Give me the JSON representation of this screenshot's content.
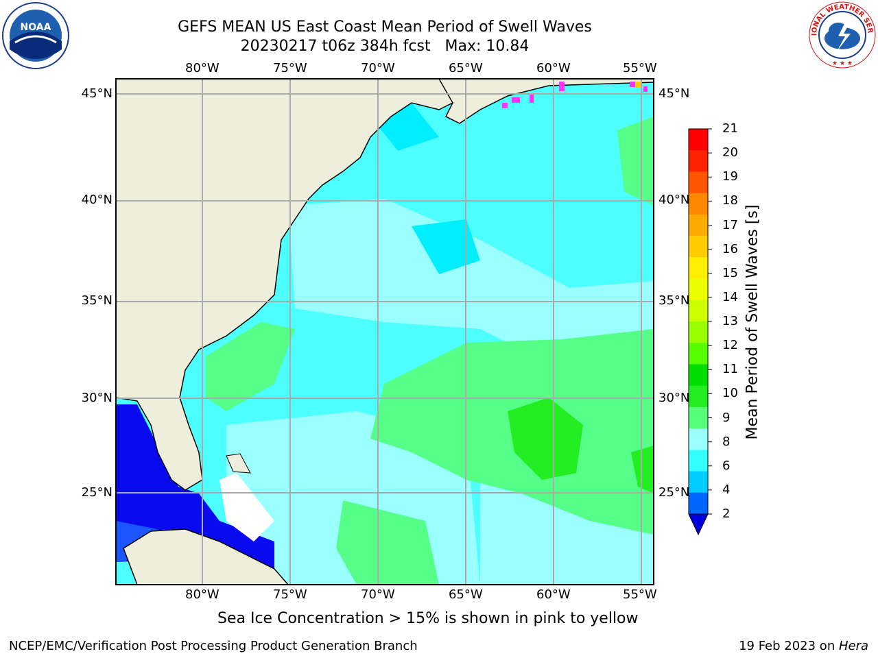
{
  "title": {
    "line1": "GEFS MEAN US East Coast Mean Period of Swell Waves",
    "line2": "20230217 t06z 384h fcst   Max: 10.84"
  },
  "logos": {
    "left": "NOAA",
    "right": "NATIONAL WEATHER SERVICE"
  },
  "map": {
    "lon_labels": [
      "80°W",
      "75°W",
      "70°W",
      "65°W",
      "60°W",
      "55°W"
    ],
    "lat_labels": [
      "45°N",
      "40°N",
      "35°N",
      "30°N",
      "25°N"
    ],
    "region": "US East Coast / Western North Atlantic",
    "colors": {
      "land": "#eeeedd",
      "ocean_2_4": "#0a0aee",
      "ocean_4_6": "#00ddff",
      "ocean_6_8": "#4dffff",
      "ocean_8_9": "#99ffff",
      "ocean_9_10": "#55ff88",
      "ocean_10_11": "#22ee22",
      "sea_ice": "#ff33ff"
    }
  },
  "colorbar": {
    "label": "Mean Period of Swell Waves [s]",
    "ticks": [
      "21",
      "20",
      "19",
      "18",
      "17",
      "16",
      "15",
      "14",
      "13",
      "12",
      "11",
      "10",
      "9",
      "8",
      "6",
      "4",
      "2"
    ],
    "colors": [
      "#0000dd",
      "#0066ff",
      "#00ccff",
      "#33ffff",
      "#99ffff",
      "#55ff77",
      "#22ee22",
      "#00dd00",
      "#55ff00",
      "#99ff00",
      "#ccff00",
      "#eeff00",
      "#ffee00",
      "#ffcc00",
      "#ffaa00",
      "#ff8800",
      "#ff5500",
      "#ff2200",
      "#ff0000"
    ]
  },
  "note": "Sea Ice Concentration > 15% is shown in pink to yellow",
  "credit": {
    "left": "NCEP/EMC/Verification Post Processing Product Generation Branch",
    "right_date": "19 Feb 2023 on ",
    "right_host": "Hera"
  }
}
